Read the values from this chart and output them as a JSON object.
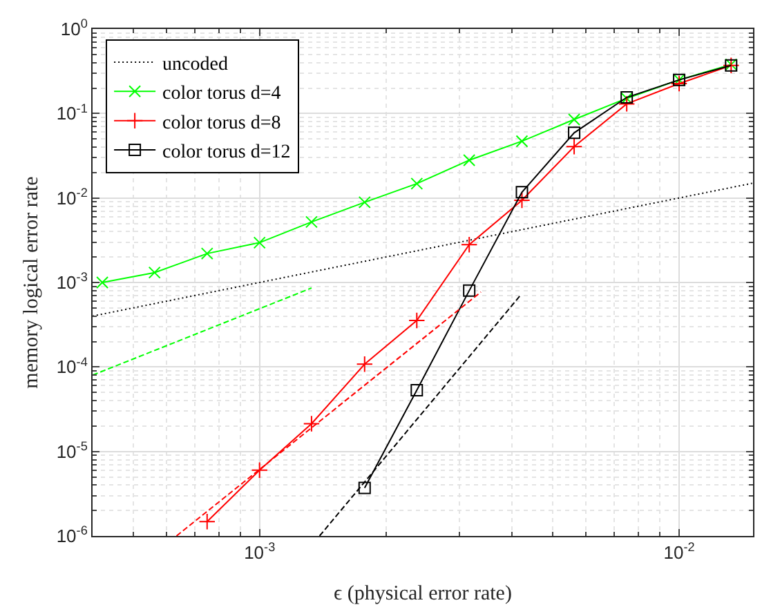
{
  "chart_data": {
    "type": "line",
    "xlabel": "ϵ (physical error rate)",
    "ylabel": "memory logical error rate",
    "x": [
      0.000422,
      0.000562,
      0.00075,
      0.001,
      0.00133,
      0.00178,
      0.00237,
      0.00316,
      0.00422,
      0.00562,
      0.0075,
      0.01,
      0.0133
    ],
    "series": [
      {
        "name": "uncoded",
        "color": "#000000",
        "line_style": "dotted",
        "marker": "none",
        "x": [
          0.0004,
          0.015
        ],
        "values": [
          0.0004,
          0.015
        ]
      },
      {
        "name": "color torus d=4",
        "color": "#00ff00",
        "line_style": "solid",
        "marker": "x",
        "values": [
          0.001,
          0.00131,
          0.0022,
          0.00296,
          0.0052,
          0.0089,
          0.0148,
          0.028,
          0.047,
          0.085,
          0.151,
          0.25,
          0.38
        ]
      },
      {
        "name": "color torus d=8",
        "color": "#ff0000",
        "line_style": "solid",
        "marker": "cross",
        "values": [
          null,
          null,
          1.48e-06,
          6e-06,
          2.13e-05,
          0.000108,
          0.000355,
          0.0028,
          0.0094,
          0.0406,
          0.13,
          0.226,
          0.37
        ]
      },
      {
        "name": "color torus d=12",
        "color": "#000000",
        "line_style": "solid",
        "marker": "square",
        "values": [
          null,
          null,
          null,
          null,
          null,
          3.7e-06,
          5.3e-05,
          0.0008,
          0.0117,
          0.059,
          0.155,
          0.25,
          0.37
        ]
      },
      {
        "color": "#00ff00",
        "line_style": "dashed",
        "marker": "none",
        "x": [
          0.0004,
          0.00133
        ],
        "values": [
          8e-05,
          0.00086
        ]
      },
      {
        "color": "#ff0000",
        "line_style": "dashed",
        "marker": "none",
        "x": [
          0.000634,
          0.00337
        ],
        "values": [
          1e-06,
          0.00077
        ]
      },
      {
        "color": "#000000",
        "line_style": "dashed",
        "marker": "none",
        "x": [
          0.00139,
          0.00417
        ],
        "values": [
          1e-06,
          0.00069
        ]
      }
    ],
    "log": "xy",
    "xlim": [
      0.0004,
      0.015
    ],
    "ylim": [
      1e-06,
      1
    ],
    "xticks": [
      {
        "value": 0.001,
        "label": "10$^{-3}$"
      },
      {
        "value": 0.01,
        "label": "10$^{-2}$"
      }
    ],
    "yticks": [
      {
        "value": 1e-06,
        "label": "10$^{-6}$"
      },
      {
        "value": 1e-05,
        "label": "10$^{-5}$"
      },
      {
        "value": 0.0001,
        "label": "10$^{-4}$"
      },
      {
        "value": 0.001,
        "label": "10$^{-3}$"
      },
      {
        "value": 0.01,
        "label": "10$^{-2}$"
      },
      {
        "value": 0.1,
        "label": "10$^{-1}$"
      },
      {
        "value": 1,
        "label": "10$^{0}$"
      }
    ],
    "grid": true,
    "legend": "top left"
  }
}
